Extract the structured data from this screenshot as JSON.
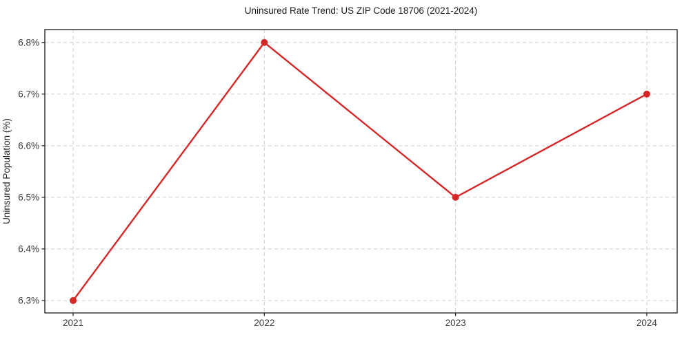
{
  "page": {
    "background": "#ffffff"
  },
  "chart_data": {
    "type": "line",
    "title": "Uninsured Rate Trend: US ZIP Code 18706 (2021-2024)",
    "xlabel": "",
    "ylabel": "Uninsured Population (%)",
    "x": [
      2021,
      2022,
      2023,
      2024
    ],
    "x_tick_labels": [
      "2021",
      "2022",
      "2023",
      "2024"
    ],
    "series": [
      {
        "name": "Uninsured Population (%)",
        "values": [
          6.3,
          6.8,
          6.5,
          6.7
        ]
      }
    ],
    "y_ticks": [
      6.3,
      6.4,
      6.5,
      6.6,
      6.7,
      6.8
    ],
    "y_tick_labels": [
      "6.3%",
      "6.4%",
      "6.5%",
      "6.6%",
      "6.7%",
      "6.8%"
    ],
    "xlim": [
      2020.852,
      2024.159
    ],
    "ylim": [
      6.276,
      6.825
    ],
    "grid": true,
    "grid_style": "dashed",
    "legend_position": "none",
    "line_color": "#d62728",
    "marker": "circle",
    "marker_radius": 5,
    "line_width": 2.4,
    "axis_color": "#1a1a1a",
    "grid_color": "#cfcfcf",
    "title_color": "#1a1a1a",
    "tick_color": "#3a3a3a"
  }
}
